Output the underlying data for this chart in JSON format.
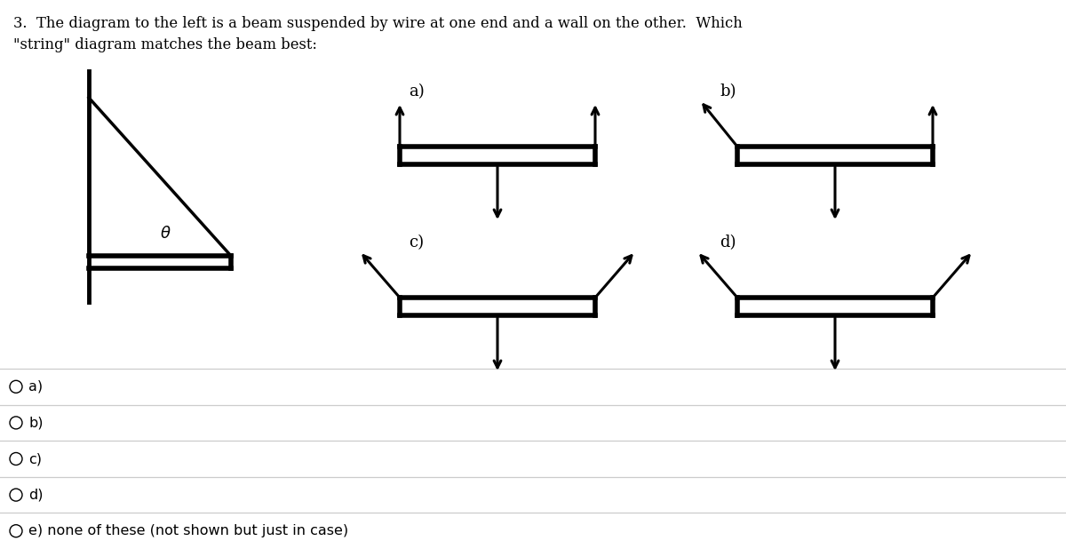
{
  "title_line1": "3.  The diagram to the left is a beam suspended by wire at one end and a wall on the other.  Which",
  "title_line2": "\"string\" diagram matches the beam best:",
  "bg_color": "#ffffff",
  "text_color": "#000000",
  "radio_options": [
    "a)",
    "b)",
    "c)",
    "d)",
    "e) none of these (not shown but just in case)"
  ],
  "diagram_a_label": "a)",
  "diagram_b_label": "b)",
  "diagram_c_label": "c)",
  "diagram_d_label": "d)",
  "figsize": [
    12.0,
    6.18
  ],
  "dpi": 100
}
